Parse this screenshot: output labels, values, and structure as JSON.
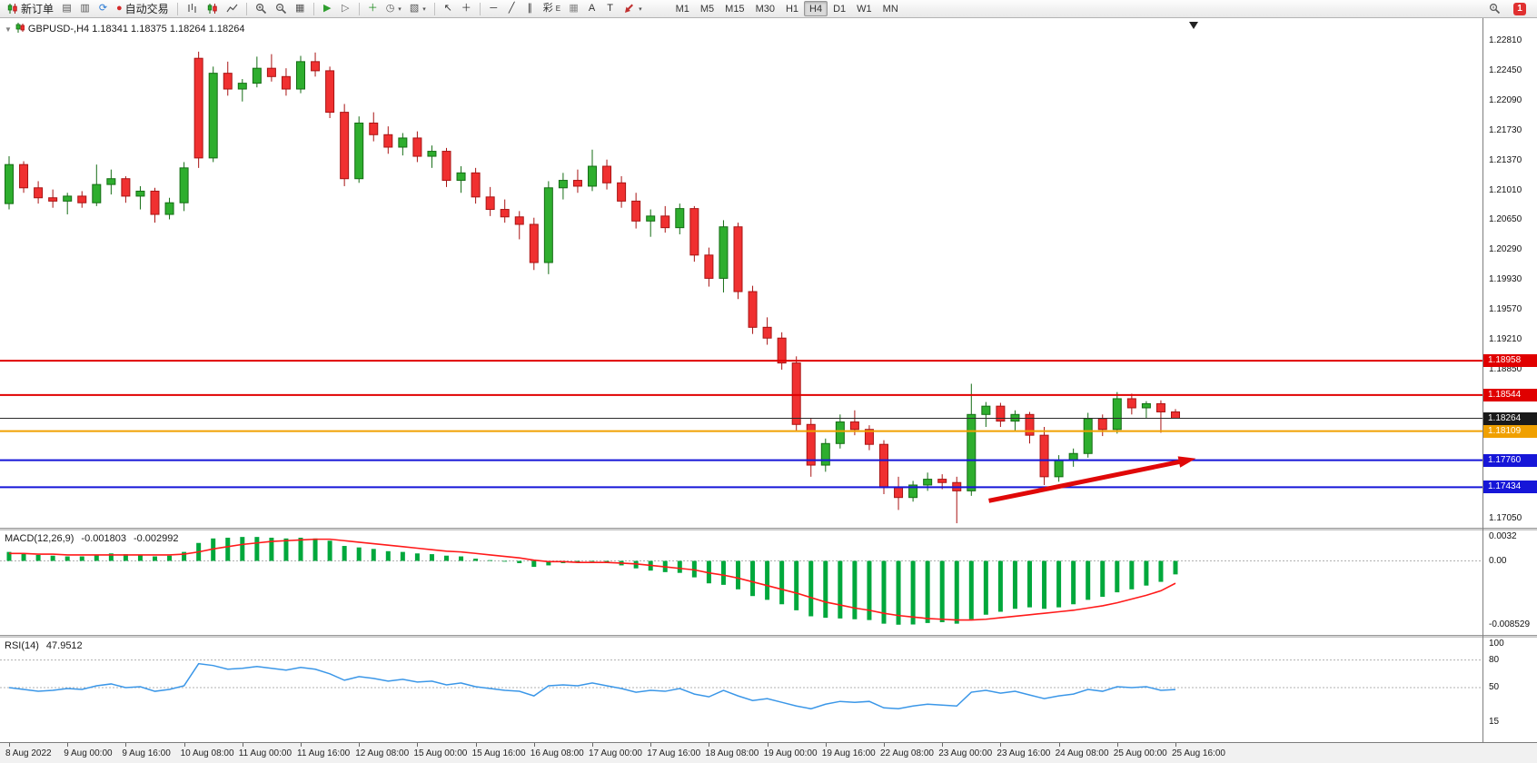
{
  "app": {
    "name": "MetaTrader Terminal"
  },
  "toolbar": {
    "left_buttons": [
      {
        "name": "new-order-button",
        "icon": "svg:candles",
        "label": "新订单"
      },
      {
        "name": "new-chart-button",
        "icon": "glyph:▤",
        "icon_color": "#555555"
      },
      {
        "name": "profiles-button",
        "icon": "glyph:▥",
        "icon_color": "#555555"
      },
      {
        "name": "refresh-button",
        "icon": "glyph:⟳",
        "icon_color": "#2a7ad4"
      },
      {
        "name": "auto-trading-button",
        "icon": "glyph:●",
        "icon_color": "#d42a2a",
        "label": "自动交易"
      },
      {
        "sep": true
      },
      {
        "name": "bar-chart-type-button",
        "icon": "svg:bars"
      },
      {
        "name": "candle-chart-type-button",
        "icon": "svg:candles"
      },
      {
        "name": "line-chart-type-button",
        "icon": "svg:linechart"
      },
      {
        "sep": true
      },
      {
        "name": "zoom-in-button",
        "icon": "svg:zoomin"
      },
      {
        "name": "zoom-out-button",
        "icon": "svg:zoomout"
      },
      {
        "name": "tile-windows-button",
        "icon": "glyph:▦",
        "icon_color": "#555555"
      },
      {
        "sep": true
      },
      {
        "name": "auto-scroll-button",
        "icon": "glyph:▶",
        "icon_color": "#2e9e2e"
      },
      {
        "name": "chart-shift-button",
        "icon": "glyph:▷",
        "icon_color": "#666666"
      },
      {
        "sep": true
      },
      {
        "name": "indicators-button",
        "icon": "glyph:＋",
        "icon_color": "#1e8a1e"
      },
      {
        "name": "periods-button",
        "icon": "glyph:◷",
        "icon_color": "#555555",
        "caret": true
      },
      {
        "name": "templates-button",
        "icon": "glyph:▧",
        "icon_color": "#555555",
        "caret": true
      },
      {
        "sep": true
      },
      {
        "name": "cursor-button",
        "icon": "glyph:↖",
        "icon_color": "#333333"
      },
      {
        "name": "crosshair-button",
        "icon": "glyph:＋",
        "icon_color": "#333333"
      },
      {
        "sep": true
      },
      {
        "name": "horizontal-line-button",
        "icon": "glyph:─",
        "icon_color": "#333333"
      },
      {
        "name": "trendline-button",
        "icon": "glyph:╱",
        "icon_color": "#333333"
      },
      {
        "name": "channel-button",
        "icon": "glyph:∥",
        "icon_color": "#333333"
      },
      {
        "name": "fibonacci-button",
        "icon": "glyph:彩",
        "icon_color": "#333333",
        "suffix": "E"
      },
      {
        "name": "grid-button",
        "icon": "glyph:▦",
        "icon_color": "#888888"
      },
      {
        "name": "text-button",
        "icon": "glyph:A",
        "icon_color": "#333333"
      },
      {
        "name": "text-label-button",
        "icon": "glyph:T",
        "icon_color": "#333333"
      },
      {
        "name": "arrows-tool-button",
        "icon": "svg:arrowtool",
        "caret": true
      }
    ],
    "timeframes": [
      {
        "label": "M1"
      },
      {
        "label": "M5"
      },
      {
        "label": "M15"
      },
      {
        "label": "M30"
      },
      {
        "label": "H1"
      },
      {
        "label": "H4",
        "active": true
      },
      {
        "label": "D1"
      },
      {
        "label": "W1"
      },
      {
        "label": "MN"
      }
    ],
    "right_buttons": [
      {
        "name": "search-button",
        "icon": "svg:magnifier"
      },
      {
        "name": "notification-badge",
        "icon": "badge:1"
      }
    ]
  },
  "chart": {
    "title": "GBPUSD-,H4  1.18341 1.18375 1.18264 1.18264",
    "symbol": "GBPUSD-",
    "timeframe": "H4",
    "ohlc": {
      "open": "1.18341",
      "high": "1.18375",
      "low": "1.18264",
      "close": "1.18264"
    }
  },
  "price_axis": {
    "ticks": [
      "1.22810",
      "1.22450",
      "1.22090",
      "1.21730",
      "1.21370",
      "1.21010",
      "1.20650",
      "1.20290",
      "1.19930",
      "1.19570",
      "1.19210",
      "1.18850",
      "1.18490",
      "1.18130",
      "1.17770",
      "1.17410",
      "1.17050"
    ],
    "tags": [
      {
        "price": 1.18958,
        "label": "1.18958",
        "color": "#e00000"
      },
      {
        "price": 1.18544,
        "label": "1.18544",
        "color": "#e00000"
      },
      {
        "price": 1.18264,
        "label": "1.18264",
        "color": "#1a1a1a"
      },
      {
        "price": 1.18109,
        "label": "1.18109",
        "color": "#f0a000"
      },
      {
        "price": 1.1776,
        "label": "1.17760",
        "color": "#1616d8"
      },
      {
        "price": 1.17434,
        "label": "1.17434",
        "color": "#1616d8"
      }
    ]
  },
  "macd": {
    "label": "MACD(12,26,9)",
    "value_main": "-0.001803",
    "value_signal": "-0.002992",
    "axis": [
      "0.0032",
      "0.00",
      "-0.008529"
    ]
  },
  "rsi": {
    "label": "RSI(14)",
    "value": "47.9512",
    "axis": [
      "100",
      "80",
      "50",
      "15"
    ]
  },
  "time_axis": {
    "labels": [
      "8 Aug 2022",
      "9 Aug 00:00",
      "9 Aug 16:00",
      "10 Aug 08:00",
      "11 Aug 00:00",
      "11 Aug 16:00",
      "12 Aug 08:00",
      "15 Aug 00:00",
      "15 Aug 16:00",
      "16 Aug 08:00",
      "17 Aug 00:00",
      "17 Aug 16:00",
      "18 Aug 08:00",
      "19 Aug 00:00",
      "19 Aug 16:00",
      "22 Aug 08:00",
      "23 Aug 00:00",
      "23 Aug 16:00",
      "24 Aug 08:00",
      "25 Aug 00:00",
      "25 Aug 16:00"
    ],
    "candles_per_label": 4
  },
  "chart_data": [
    {
      "type": "candlestick",
      "title": "GBPUSD H4",
      "ylim": [
        1.1705,
        1.2281
      ],
      "y_tick_step": 0.0036,
      "colors": {
        "up": "#2eae2e",
        "up_border": "#156d15",
        "down": "#f03030",
        "down_border": "#a81414"
      },
      "candles": [
        [
          1.2085,
          1.2142,
          1.2078,
          1.2132
        ],
        [
          1.2132,
          1.2136,
          1.2098,
          1.2104
        ],
        [
          1.2104,
          1.2112,
          1.2085,
          1.2092
        ],
        [
          1.2092,
          1.2102,
          1.208,
          1.2088
        ],
        [
          1.2088,
          1.2098,
          1.2072,
          1.2094
        ],
        [
          1.2094,
          1.21,
          1.208,
          1.2086
        ],
        [
          1.2086,
          1.2132,
          1.2082,
          1.2108
        ],
        [
          1.2108,
          1.2126,
          1.2096,
          1.2115
        ],
        [
          1.2115,
          1.2118,
          1.2086,
          1.2094
        ],
        [
          1.2094,
          1.2106,
          1.2078,
          1.21
        ],
        [
          1.21,
          1.2104,
          1.2062,
          1.2072
        ],
        [
          1.2072,
          1.2092,
          1.2066,
          1.2086
        ],
        [
          1.2086,
          1.2135,
          1.2076,
          1.2128
        ],
        [
          1.226,
          1.2268,
          1.2128,
          1.214
        ],
        [
          1.214,
          1.225,
          1.2135,
          1.2242
        ],
        [
          1.2242,
          1.2256,
          1.2215,
          1.2223
        ],
        [
          1.2223,
          1.2235,
          1.2208,
          1.223
        ],
        [
          1.223,
          1.2262,
          1.2225,
          1.2248
        ],
        [
          1.2248,
          1.2265,
          1.2232,
          1.2238
        ],
        [
          1.2238,
          1.2248,
          1.2215,
          1.2223
        ],
        [
          1.2223,
          1.2263,
          1.2218,
          1.2256
        ],
        [
          1.2256,
          1.2267,
          1.2238,
          1.2245
        ],
        [
          1.2245,
          1.225,
          1.2188,
          1.2195
        ],
        [
          1.2195,
          1.2205,
          1.2106,
          1.2115
        ],
        [
          1.2115,
          1.219,
          1.211,
          1.2182
        ],
        [
          1.2182,
          1.2195,
          1.216,
          1.2168
        ],
        [
          1.2168,
          1.2178,
          1.2145,
          1.2153
        ],
        [
          1.2153,
          1.217,
          1.2143,
          1.2164
        ],
        [
          1.2164,
          1.2172,
          1.2135,
          1.2142
        ],
        [
          1.2142,
          1.2155,
          1.2128,
          1.2148
        ],
        [
          1.2148,
          1.2152,
          1.2105,
          1.2113
        ],
        [
          1.2113,
          1.213,
          1.2098,
          1.2122
        ],
        [
          1.2122,
          1.2128,
          1.2085,
          1.2093
        ],
        [
          1.2093,
          1.2105,
          1.207,
          1.2078
        ],
        [
          1.2078,
          1.209,
          1.2062,
          1.2069
        ],
        [
          1.2069,
          1.2076,
          1.2042,
          1.206
        ],
        [
          1.206,
          1.2068,
          1.2005,
          1.2014
        ],
        [
          1.2014,
          1.2112,
          1.2,
          1.2104
        ],
        [
          1.2104,
          1.2122,
          1.209,
          1.2113
        ],
        [
          1.2113,
          1.2126,
          1.2098,
          1.2106
        ],
        [
          1.2106,
          1.215,
          1.21,
          1.213
        ],
        [
          1.213,
          1.2138,
          1.2102,
          1.211
        ],
        [
          1.211,
          1.2118,
          1.208,
          1.2088
        ],
        [
          1.2088,
          1.2098,
          1.2055,
          1.2064
        ],
        [
          1.2064,
          1.2078,
          1.2045,
          1.207
        ],
        [
          1.207,
          1.2082,
          1.205,
          1.2056
        ],
        [
          1.2056,
          1.2085,
          1.2048,
          1.2079
        ],
        [
          1.2079,
          1.2082,
          1.2015,
          1.2023
        ],
        [
          1.2023,
          1.2032,
          1.1985,
          1.1995
        ],
        [
          1.1995,
          1.2065,
          1.1978,
          1.2057
        ],
        [
          1.2057,
          1.2062,
          1.197,
          1.1979
        ],
        [
          1.1979,
          1.1986,
          1.1928,
          1.1936
        ],
        [
          1.1936,
          1.1948,
          1.1915,
          1.1923
        ],
        [
          1.1923,
          1.193,
          1.1885,
          1.1893
        ],
        [
          1.1893,
          1.1901,
          1.181,
          1.1819
        ],
        [
          1.1819,
          1.1827,
          1.1756,
          1.177
        ],
        [
          1.177,
          1.1802,
          1.1762,
          1.1796
        ],
        [
          1.1796,
          1.1831,
          1.179,
          1.1822
        ],
        [
          1.1822,
          1.1836,
          1.1806,
          1.1813
        ],
        [
          1.1813,
          1.1818,
          1.1788,
          1.1795
        ],
        [
          1.1795,
          1.18,
          1.1735,
          1.1743
        ],
        [
          1.1743,
          1.1756,
          1.1716,
          1.1731
        ],
        [
          1.1731,
          1.1751,
          1.1726,
          1.1746
        ],
        [
          1.1746,
          1.1761,
          1.1739,
          1.1753
        ],
        [
          1.1753,
          1.1759,
          1.1741,
          1.1749
        ],
        [
          1.1749,
          1.1756,
          1.17,
          1.1739
        ],
        [
          1.1739,
          1.1868,
          1.1733,
          1.1831
        ],
        [
          1.1831,
          1.1846,
          1.1816,
          1.1841
        ],
        [
          1.1841,
          1.1845,
          1.1816,
          1.1823
        ],
        [
          1.1823,
          1.1836,
          1.1811,
          1.1831
        ],
        [
          1.1831,
          1.1834,
          1.1796,
          1.1806
        ],
        [
          1.1806,
          1.1816,
          1.1746,
          1.1756
        ],
        [
          1.1756,
          1.1782,
          1.175,
          1.1776
        ],
        [
          1.1776,
          1.179,
          1.1768,
          1.1784
        ],
        [
          1.1784,
          1.1833,
          1.1779,
          1.1826
        ],
        [
          1.1826,
          1.1831,
          1.1805,
          1.1813
        ],
        [
          1.1813,
          1.1858,
          1.1808,
          1.185
        ],
        [
          1.185,
          1.1856,
          1.1831,
          1.1839
        ],
        [
          1.1839,
          1.1847,
          1.1827,
          1.1844
        ],
        [
          1.1844,
          1.1848,
          1.1809,
          1.18341
        ],
        [
          1.18341,
          1.18375,
          1.18264,
          1.18264
        ]
      ],
      "levels": [
        {
          "price": 1.18958,
          "color": "#e00000",
          "width": 2
        },
        {
          "price": 1.18544,
          "color": "#e00000",
          "width": 2
        },
        {
          "price": 1.18264,
          "color": "#2a2a2a",
          "width": 1
        },
        {
          "price": 1.18109,
          "color": "#f0a000",
          "width": 2
        },
        {
          "price": 1.1776,
          "color": "#1616d8",
          "width": 2
        },
        {
          "price": 1.17434,
          "color": "#1616d8",
          "width": 2
        }
      ],
      "current_price": 1.18264,
      "annotations": [
        {
          "type": "arrow",
          "from_index": 67.2,
          "from_price": 1.1727,
          "to_index": 81.4,
          "to_price": 1.1778,
          "color": "#e00808",
          "width": 5
        }
      ]
    },
    {
      "type": "bar",
      "name": "MACD(12,26,9)",
      "ylim": [
        -0.008529,
        0.0032
      ],
      "histogram_color": "#00a83c",
      "signal_color": "#ff1a1a",
      "histogram": [
        0.0012,
        0.001,
        0.0008,
        0.0007,
        0.0006,
        0.0006,
        0.0008,
        0.001,
        0.0009,
        0.0008,
        0.0006,
        0.0007,
        0.0012,
        0.0024,
        0.003,
        0.0031,
        0.0032,
        0.0032,
        0.0031,
        0.003,
        0.0031,
        0.003,
        0.0027,
        0.002,
        0.0018,
        0.0016,
        0.0013,
        0.0012,
        0.001,
        0.0009,
        0.0007,
        0.0006,
        0.0003,
        0.0001,
        -0.0001,
        -0.0003,
        -0.0008,
        -0.0006,
        -0.0003,
        -0.0002,
        -0.0001,
        -0.0003,
        -0.0006,
        -0.001,
        -0.0013,
        -0.0015,
        -0.0016,
        -0.0022,
        -0.003,
        -0.0032,
        -0.0038,
        -0.0047,
        -0.0052,
        -0.0058,
        -0.0066,
        -0.0074,
        -0.0076,
        -0.0077,
        -0.0078,
        -0.0079,
        -0.0084,
        -0.008529,
        -0.0085,
        -0.0083,
        -0.0082,
        -0.0084,
        -0.0078,
        -0.0072,
        -0.0068,
        -0.0064,
        -0.0062,
        -0.0064,
        -0.0062,
        -0.0058,
        -0.0052,
        -0.0048,
        -0.0042,
        -0.0038,
        -0.0033,
        -0.0028,
        -0.001803
      ],
      "signal": [
        0.001,
        0.001,
        0.0009,
        0.0009,
        0.0008,
        0.0008,
        0.0008,
        0.0008,
        0.0008,
        0.0008,
        0.0008,
        0.0008,
        0.0009,
        0.0012,
        0.0016,
        0.0019,
        0.0022,
        0.0024,
        0.0026,
        0.0027,
        0.0028,
        0.0029,
        0.0029,
        0.0027,
        0.0025,
        0.0023,
        0.0021,
        0.0019,
        0.0017,
        0.0015,
        0.0013,
        0.0012,
        0.001,
        0.0008,
        0.0006,
        0.0004,
        0.0001,
        -0.0001,
        -0.0001,
        -0.0002,
        -0.0002,
        -0.0002,
        -0.0003,
        -0.0004,
        -0.0006,
        -0.0008,
        -0.001,
        -0.0012,
        -0.0016,
        -0.0019,
        -0.0023,
        -0.0028,
        -0.0033,
        -0.0038,
        -0.0043,
        -0.0049,
        -0.0055,
        -0.0059,
        -0.0063,
        -0.0066,
        -0.007,
        -0.0073,
        -0.0075,
        -0.0077,
        -0.0078,
        -0.0079,
        -0.0079,
        -0.0078,
        -0.0076,
        -0.0074,
        -0.0072,
        -0.007,
        -0.0068,
        -0.0066,
        -0.0063,
        -0.006,
        -0.0056,
        -0.0051,
        -0.0046,
        -0.004,
        -0.002992
      ],
      "current_main": -0.001803,
      "current_signal": -0.002992
    },
    {
      "type": "line",
      "name": "RSI(14)",
      "line_color": "#3b97e8",
      "levels": [
        80,
        50
      ],
      "ylim": [
        15,
        100
      ],
      "values": [
        50,
        48,
        46,
        47,
        49,
        48,
        52,
        54,
        50,
        51,
        46,
        48,
        52,
        76,
        74,
        70,
        71,
        73,
        71,
        69,
        72,
        70,
        65,
        58,
        62,
        60,
        57,
        59,
        56,
        57,
        53,
        55,
        51,
        49,
        47,
        46,
        41,
        52,
        53,
        52,
        55,
        52,
        49,
        45,
        47,
        46,
        49,
        43,
        40,
        47,
        41,
        36,
        38,
        34,
        30,
        27,
        32,
        35,
        34,
        35,
        28,
        27,
        30,
        32,
        31,
        30,
        45,
        47,
        44,
        46,
        42,
        38,
        41,
        43,
        48,
        46,
        51,
        50,
        51,
        47,
        47.9512
      ],
      "current": 47.9512
    }
  ]
}
